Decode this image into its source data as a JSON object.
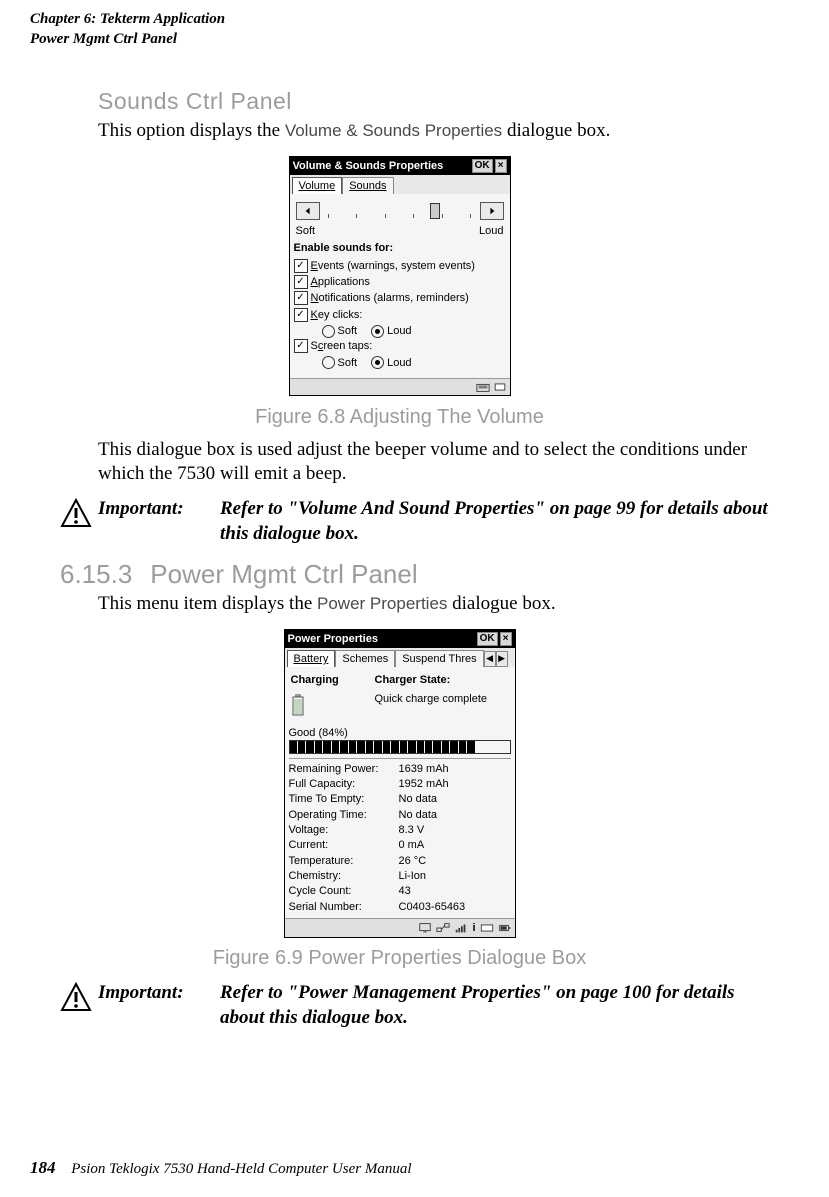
{
  "header": {
    "line1": "Chapter 6: Tekterm Application",
    "line2": "Power Mgmt Ctrl Panel"
  },
  "soundsSection": {
    "heading": "Sounds Ctrl Panel",
    "bodyPrefix": "This option displays the ",
    "uiRef": "Volume & Sounds Properties",
    "bodySuffix": " dialogue box."
  },
  "volumeScreenshot": {
    "title": "Volume & Sounds Properties",
    "okLabel": "OK",
    "closeLabel": "×",
    "tabs": {
      "active": "Volume",
      "other": "Sounds"
    },
    "slider": {
      "leftLabel": "Soft",
      "rightLabel": "Loud"
    },
    "enableHeading": "Enable sounds for:",
    "checks": {
      "events": "Events (warnings, system events)",
      "applications": "Applications",
      "notifications": "Notifications (alarms, reminders)",
      "keyclicks": "Key clicks:",
      "screentaps": "Screen taps:"
    },
    "radios": {
      "soft": "Soft",
      "loud": "Loud"
    }
  },
  "figure68": "Figure 6.8 Adjusting The Volume",
  "soundsParagraph": "This dialogue box is used adjust the beeper volume and to select the conditions under which the 7530 will emit a beep.",
  "important1": {
    "label": "Important:",
    "text": "Refer to \"Volume And Sound Properties\" on page 99 for details about this dialogue box."
  },
  "powerHeading": {
    "num": "6.15.3",
    "text": "Power Mgmt Ctrl Panel"
  },
  "powerIntro": {
    "prefix": "This menu item displays the ",
    "uiRef": "Power Properties",
    "suffix": " dialogue box."
  },
  "powerScreenshot": {
    "title": "Power Properties",
    "okLabel": "OK",
    "closeLabel": "×",
    "tabs": {
      "battery": "Battery",
      "schemes": "Schemes",
      "suspend": "Suspend Thres"
    },
    "chargingLabel": "Charging",
    "chargerStateLabel": "Charger State:",
    "chargerState": "Quick charge complete",
    "goodLabel": "Good  (84%)",
    "progressPercent": 84,
    "kv": [
      {
        "k": "Remaining Power:",
        "v": "1639 mAh"
      },
      {
        "k": "Full Capacity:",
        "v": "1952 mAh"
      },
      {
        "k": "Time To Empty:",
        "v": "No data"
      },
      {
        "k": "Operating Time:",
        "v": "No data"
      },
      {
        "k": "Voltage:",
        "v": "8.3 V"
      },
      {
        "k": "Current:",
        "v": "0 mA"
      },
      {
        "k": "Temperature:",
        "v": "26 °C"
      },
      {
        "k": "Chemistry:",
        "v": "Li-Ion"
      },
      {
        "k": "Cycle Count:",
        "v": "43"
      },
      {
        "k": "Serial Number:",
        "v": "C0403-65463"
      }
    ]
  },
  "figure69": "Figure 6.9 Power Properties Dialogue Box",
  "important2": {
    "label": "Important:",
    "text": "Refer to \"Power Management Properties\" on page 100 for details about this dialogue box."
  },
  "footer": {
    "pagenum": "184",
    "text": "Psion Teklogix 7530 Hand-Held Computer User Manual"
  },
  "colors": {
    "headingGray": "#9c9c9c",
    "text": "#000000",
    "bg": "#ffffff"
  }
}
